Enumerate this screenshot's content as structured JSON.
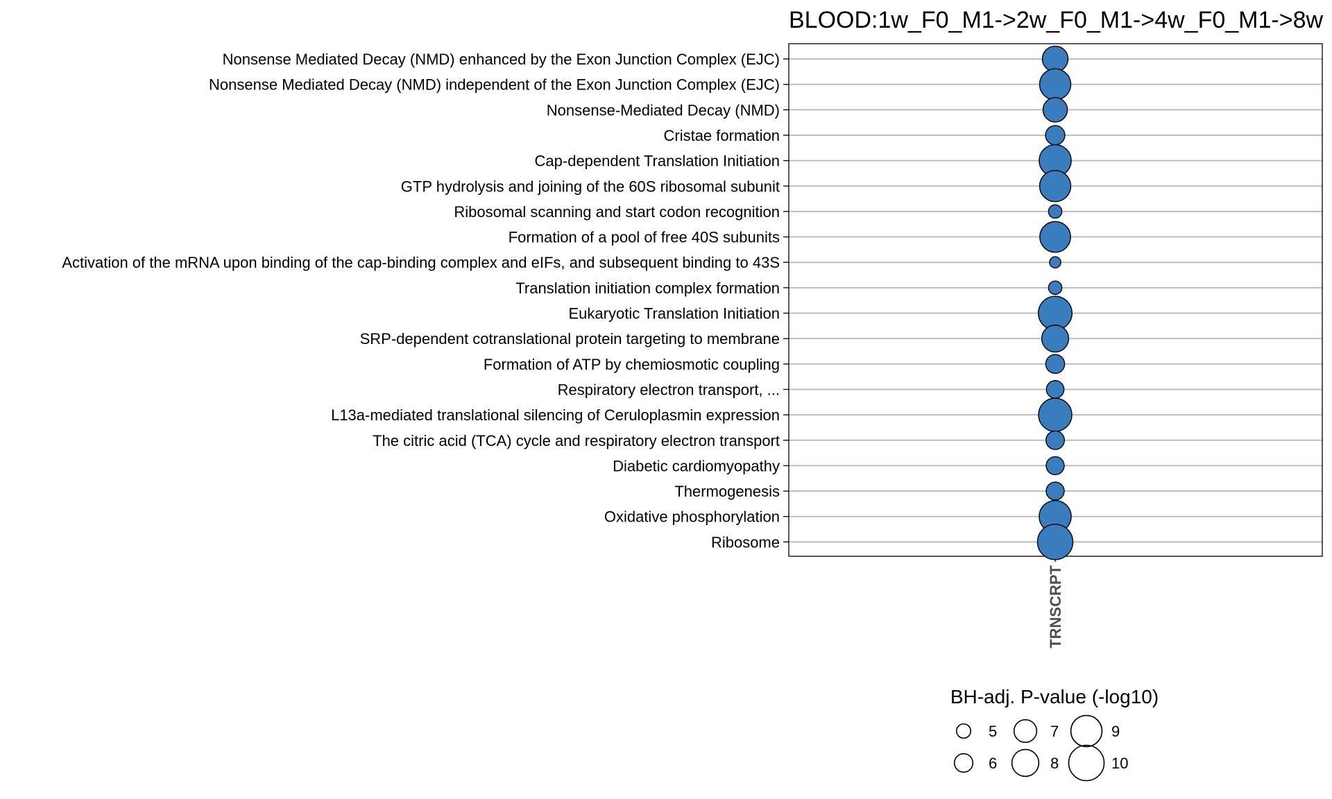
{
  "chart_data": {
    "type": "scatter",
    "title": "BLOOD:1w_F0_M1->2w_F0_M1->4w_F0_M1->8w",
    "x_categories": [
      "TRNSCRPT"
    ],
    "size_label": "BH-adj. P-value (-log10)",
    "point_color": "#3a7dbf",
    "categories": [
      "Nonsense Mediated Decay (NMD) enhanced by the Exon Junction Complex (EJC)",
      "Nonsense Mediated Decay (NMD) independent of the Exon Junction Complex (EJC)",
      "Nonsense-Mediated Decay (NMD)",
      "Cristae formation",
      "Cap-dependent Translation Initiation",
      "GTP hydrolysis and joining of the 60S ribosomal subunit",
      "Ribosomal scanning and start codon recognition",
      "Formation of a pool of free 40S subunits",
      "Activation of the mRNA upon binding of the cap-binding complex and eIFs, and subsequent binding to 43S",
      "Translation initiation complex formation",
      "Eukaryotic Translation Initiation",
      "SRP-dependent cotranslational protein targeting to membrane",
      "Formation of ATP by chemiosmotic coupling",
      "Respiratory electron transport, ...",
      "L13a-mediated translational silencing of Ceruloplasmin expression",
      "The citric acid (TCA) cycle and respiratory electron transport",
      "Diabetic cardiomyopathy",
      "Thermogenesis",
      "Oxidative phosphorylation",
      "Ribosome"
    ],
    "values": [
      7.7,
      9.0,
      7.4,
      6.2,
      9.2,
      9.0,
      4.8,
      8.9,
      4.3,
      4.8,
      9.6,
      8.0,
      6.1,
      5.8,
      9.5,
      6.0,
      5.9,
      5.9,
      9.2,
      10.0
    ],
    "legend": {
      "values": [
        5,
        6,
        7,
        8,
        9,
        10
      ],
      "labels": [
        "5",
        "6",
        "7",
        "8",
        "9",
        "10"
      ]
    }
  }
}
